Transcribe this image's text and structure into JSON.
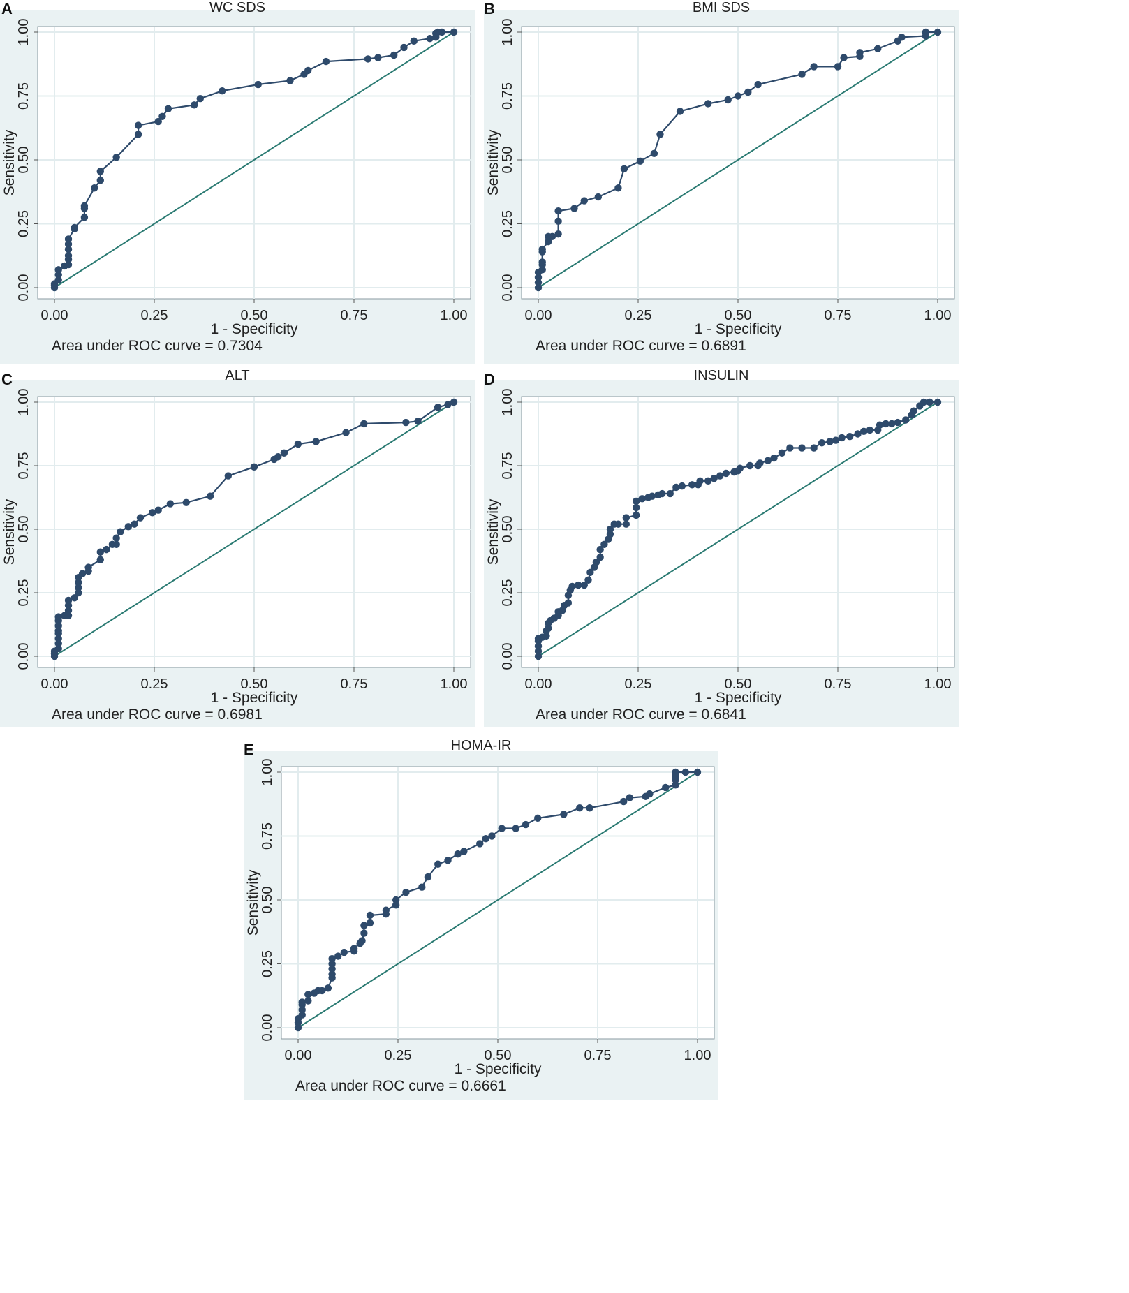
{
  "chart_data": [
    {
      "id": "A",
      "type": "line",
      "title": "WC SDS",
      "xlabel": "1 - Specificity",
      "ylabel": "Sensitivity",
      "xlim": [
        0,
        1
      ],
      "ylim": [
        0,
        1
      ],
      "xticks": [
        "0.00",
        "0.25",
        "0.50",
        "0.75",
        "1.00"
      ],
      "yticks": [
        "0.00",
        "0.25",
        "0.50",
        "0.75",
        "1.00"
      ],
      "grid": true,
      "note": "Area under ROC curve = 0.7304",
      "points": [
        [
          0,
          0
        ],
        [
          0,
          0.01
        ],
        [
          0,
          0.015
        ],
        [
          0.01,
          0.03
        ],
        [
          0.01,
          0.05
        ],
        [
          0.01,
          0.07
        ],
        [
          0.025,
          0.085
        ],
        [
          0.035,
          0.09
        ],
        [
          0.035,
          0.11
        ],
        [
          0.035,
          0.125
        ],
        [
          0.035,
          0.15
        ],
        [
          0.035,
          0.17
        ],
        [
          0.035,
          0.19
        ],
        [
          0.05,
          0.23
        ],
        [
          0.05,
          0.235
        ],
        [
          0.075,
          0.275
        ],
        [
          0.075,
          0.31
        ],
        [
          0.075,
          0.32
        ],
        [
          0.1,
          0.39
        ],
        [
          0.115,
          0.42
        ],
        [
          0.115,
          0.455
        ],
        [
          0.155,
          0.51
        ],
        [
          0.21,
          0.6
        ],
        [
          0.21,
          0.635
        ],
        [
          0.26,
          0.65
        ],
        [
          0.27,
          0.67
        ],
        [
          0.285,
          0.7
        ],
        [
          0.35,
          0.715
        ],
        [
          0.365,
          0.74
        ],
        [
          0.42,
          0.77
        ],
        [
          0.51,
          0.795
        ],
        [
          0.59,
          0.81
        ],
        [
          0.625,
          0.835
        ],
        [
          0.635,
          0.85
        ],
        [
          0.68,
          0.885
        ],
        [
          0.785,
          0.895
        ],
        [
          0.81,
          0.9
        ],
        [
          0.85,
          0.91
        ],
        [
          0.875,
          0.94
        ],
        [
          0.9,
          0.965
        ],
        [
          0.94,
          0.975
        ],
        [
          0.955,
          0.98
        ],
        [
          0.955,
          0.995
        ],
        [
          0.96,
          1
        ],
        [
          0.97,
          1
        ],
        [
          1,
          1
        ]
      ],
      "series_color": "#2e4a6b",
      "reference_color": "#2a7a72"
    },
    {
      "id": "B",
      "type": "line",
      "title": "BMI SDS",
      "xlabel": "1 - Specificity",
      "ylabel": "Sensitivity",
      "xlim": [
        0,
        1
      ],
      "ylim": [
        0,
        1
      ],
      "xticks": [
        "0.00",
        "0.25",
        "0.50",
        "0.75",
        "1.00"
      ],
      "yticks": [
        "0.00",
        "0.25",
        "0.50",
        "0.75",
        "1.00"
      ],
      "grid": true,
      "note": "Area under ROC curve = 0.6891",
      "points": [
        [
          0,
          0
        ],
        [
          0,
          0.02
        ],
        [
          0,
          0.04
        ],
        [
          0,
          0.06
        ],
        [
          0.01,
          0.07
        ],
        [
          0.01,
          0.09
        ],
        [
          0.01,
          0.1
        ],
        [
          0.01,
          0.14
        ],
        [
          0.01,
          0.15
        ],
        [
          0.025,
          0.18
        ],
        [
          0.025,
          0.2
        ],
        [
          0.035,
          0.2
        ],
        [
          0.05,
          0.21
        ],
        [
          0.05,
          0.26
        ],
        [
          0.05,
          0.3
        ],
        [
          0.09,
          0.31
        ],
        [
          0.115,
          0.34
        ],
        [
          0.15,
          0.355
        ],
        [
          0.2,
          0.39
        ],
        [
          0.215,
          0.465
        ],
        [
          0.255,
          0.495
        ],
        [
          0.29,
          0.525
        ],
        [
          0.305,
          0.6
        ],
        [
          0.355,
          0.69
        ],
        [
          0.425,
          0.72
        ],
        [
          0.475,
          0.735
        ],
        [
          0.5,
          0.75
        ],
        [
          0.525,
          0.765
        ],
        [
          0.55,
          0.795
        ],
        [
          0.66,
          0.835
        ],
        [
          0.69,
          0.865
        ],
        [
          0.75,
          0.865
        ],
        [
          0.765,
          0.9
        ],
        [
          0.805,
          0.905
        ],
        [
          0.805,
          0.92
        ],
        [
          0.85,
          0.935
        ],
        [
          0.9,
          0.965
        ],
        [
          0.91,
          0.98
        ],
        [
          0.97,
          0.985
        ],
        [
          0.97,
          1
        ],
        [
          1,
          1
        ]
      ],
      "series_color": "#2e4a6b",
      "reference_color": "#2a7a72"
    },
    {
      "id": "C",
      "type": "line",
      "title": "ALT",
      "xlabel": "1 - Specificity",
      "ylabel": "Sensitivity",
      "xlim": [
        0,
        1
      ],
      "ylim": [
        0,
        1
      ],
      "xticks": [
        "0.00",
        "0.25",
        "0.50",
        "0.75",
        "1.00"
      ],
      "yticks": [
        "0.00",
        "0.25",
        "0.50",
        "0.75",
        "1.00"
      ],
      "grid": true,
      "note": "Area under ROC curve = 0.6981",
      "points": [
        [
          0,
          0
        ],
        [
          0,
          0.01
        ],
        [
          0,
          0.02
        ],
        [
          0.01,
          0.03
        ],
        [
          0.01,
          0.05
        ],
        [
          0.01,
          0.07
        ],
        [
          0.01,
          0.09
        ],
        [
          0.01,
          0.1
        ],
        [
          0.01,
          0.12
        ],
        [
          0.01,
          0.14
        ],
        [
          0.01,
          0.155
        ],
        [
          0.025,
          0.16
        ],
        [
          0.035,
          0.16
        ],
        [
          0.035,
          0.18
        ],
        [
          0.035,
          0.2
        ],
        [
          0.035,
          0.22
        ],
        [
          0.05,
          0.23
        ],
        [
          0.06,
          0.25
        ],
        [
          0.06,
          0.27
        ],
        [
          0.06,
          0.29
        ],
        [
          0.06,
          0.31
        ],
        [
          0.07,
          0.325
        ],
        [
          0.085,
          0.335
        ],
        [
          0.085,
          0.35
        ],
        [
          0.115,
          0.38
        ],
        [
          0.115,
          0.41
        ],
        [
          0.13,
          0.42
        ],
        [
          0.145,
          0.44
        ],
        [
          0.155,
          0.44
        ],
        [
          0.155,
          0.465
        ],
        [
          0.165,
          0.49
        ],
        [
          0.185,
          0.51
        ],
        [
          0.2,
          0.52
        ],
        [
          0.215,
          0.545
        ],
        [
          0.245,
          0.565
        ],
        [
          0.26,
          0.575
        ],
        [
          0.29,
          0.6
        ],
        [
          0.33,
          0.605
        ],
        [
          0.39,
          0.63
        ],
        [
          0.435,
          0.71
        ],
        [
          0.5,
          0.745
        ],
        [
          0.55,
          0.775
        ],
        [
          0.56,
          0.785
        ],
        [
          0.575,
          0.8
        ],
        [
          0.61,
          0.835
        ],
        [
          0.655,
          0.845
        ],
        [
          0.73,
          0.88
        ],
        [
          0.775,
          0.915
        ],
        [
          0.88,
          0.92
        ],
        [
          0.91,
          0.925
        ],
        [
          0.96,
          0.98
        ],
        [
          0.985,
          0.99
        ],
        [
          1,
          1
        ]
      ],
      "series_color": "#2e4a6b",
      "reference_color": "#2a7a72"
    },
    {
      "id": "D",
      "type": "line",
      "title": "INSULIN",
      "xlabel": "1 - Specificity",
      "ylabel": "Sensitivity",
      "xlim": [
        0,
        1
      ],
      "ylim": [
        0,
        1
      ],
      "xticks": [
        "0.00",
        "0.25",
        "0.50",
        "0.75",
        "1.00"
      ],
      "yticks": [
        "0.00",
        "0.25",
        "0.50",
        "0.75",
        "1.00"
      ],
      "grid": true,
      "note": "Area under ROC curve = 0.6841",
      "points": [
        [
          0,
          0
        ],
        [
          0,
          0.02
        ],
        [
          0,
          0.04
        ],
        [
          0,
          0.06
        ],
        [
          0,
          0.07
        ],
        [
          0.01,
          0.075
        ],
        [
          0.02,
          0.08
        ],
        [
          0.02,
          0.1
        ],
        [
          0.025,
          0.11
        ],
        [
          0.025,
          0.13
        ],
        [
          0.03,
          0.14
        ],
        [
          0.04,
          0.15
        ],
        [
          0.05,
          0.16
        ],
        [
          0.05,
          0.175
        ],
        [
          0.06,
          0.18
        ],
        [
          0.065,
          0.2
        ],
        [
          0.075,
          0.21
        ],
        [
          0.075,
          0.24
        ],
        [
          0.08,
          0.26
        ],
        [
          0.085,
          0.275
        ],
        [
          0.1,
          0.28
        ],
        [
          0.115,
          0.28
        ],
        [
          0.125,
          0.3
        ],
        [
          0.13,
          0.33
        ],
        [
          0.14,
          0.35
        ],
        [
          0.145,
          0.37
        ],
        [
          0.155,
          0.39
        ],
        [
          0.155,
          0.42
        ],
        [
          0.165,
          0.44
        ],
        [
          0.175,
          0.46
        ],
        [
          0.18,
          0.48
        ],
        [
          0.18,
          0.5
        ],
        [
          0.19,
          0.52
        ],
        [
          0.2,
          0.52
        ],
        [
          0.22,
          0.52
        ],
        [
          0.22,
          0.545
        ],
        [
          0.245,
          0.555
        ],
        [
          0.245,
          0.585
        ],
        [
          0.245,
          0.61
        ],
        [
          0.26,
          0.62
        ],
        [
          0.275,
          0.625
        ],
        [
          0.285,
          0.63
        ],
        [
          0.3,
          0.635
        ],
        [
          0.31,
          0.64
        ],
        [
          0.33,
          0.64
        ],
        [
          0.345,
          0.665
        ],
        [
          0.36,
          0.67
        ],
        [
          0.385,
          0.675
        ],
        [
          0.4,
          0.675
        ],
        [
          0.405,
          0.69
        ],
        [
          0.425,
          0.69
        ],
        [
          0.44,
          0.7
        ],
        [
          0.455,
          0.71
        ],
        [
          0.47,
          0.72
        ],
        [
          0.49,
          0.725
        ],
        [
          0.5,
          0.73
        ],
        [
          0.505,
          0.74
        ],
        [
          0.53,
          0.75
        ],
        [
          0.55,
          0.75
        ],
        [
          0.555,
          0.76
        ],
        [
          0.575,
          0.77
        ],
        [
          0.59,
          0.78
        ],
        [
          0.61,
          0.8
        ],
        [
          0.63,
          0.82
        ],
        [
          0.66,
          0.82
        ],
        [
          0.69,
          0.82
        ],
        [
          0.71,
          0.84
        ],
        [
          0.73,
          0.845
        ],
        [
          0.745,
          0.85
        ],
        [
          0.76,
          0.86
        ],
        [
          0.78,
          0.865
        ],
        [
          0.8,
          0.875
        ],
        [
          0.815,
          0.885
        ],
        [
          0.83,
          0.89
        ],
        [
          0.85,
          0.89
        ],
        [
          0.855,
          0.91
        ],
        [
          0.87,
          0.915
        ],
        [
          0.885,
          0.915
        ],
        [
          0.9,
          0.92
        ],
        [
          0.92,
          0.93
        ],
        [
          0.935,
          0.95
        ],
        [
          0.94,
          0.965
        ],
        [
          0.955,
          0.985
        ],
        [
          0.965,
          1
        ],
        [
          0.98,
          1
        ],
        [
          1,
          1
        ]
      ],
      "series_color": "#2e4a6b",
      "reference_color": "#2a7a72"
    },
    {
      "id": "E",
      "type": "line",
      "title": "HOMA-IR",
      "xlabel": "1 - Specificity",
      "ylabel": "Sensitivity",
      "xlim": [
        0,
        1
      ],
      "ylim": [
        0,
        1
      ],
      "xticks": [
        "0.00",
        "0.25",
        "0.50",
        "0.75",
        "1.00"
      ],
      "yticks": [
        "0.00",
        "0.25",
        "0.50",
        "0.75",
        "1.00"
      ],
      "grid": true,
      "note": "Area under ROC curve = 0.6661",
      "points": [
        [
          0,
          0
        ],
        [
          0,
          0.02
        ],
        [
          0,
          0.035
        ],
        [
          0.01,
          0.05
        ],
        [
          0.01,
          0.07
        ],
        [
          0.01,
          0.09
        ],
        [
          0.01,
          0.1
        ],
        [
          0.025,
          0.105
        ],
        [
          0.025,
          0.13
        ],
        [
          0.04,
          0.135
        ],
        [
          0.05,
          0.145
        ],
        [
          0.06,
          0.145
        ],
        [
          0.075,
          0.155
        ],
        [
          0.085,
          0.195
        ],
        [
          0.085,
          0.21
        ],
        [
          0.085,
          0.23
        ],
        [
          0.085,
          0.25
        ],
        [
          0.085,
          0.27
        ],
        [
          0.1,
          0.28
        ],
        [
          0.115,
          0.295
        ],
        [
          0.14,
          0.3
        ],
        [
          0.14,
          0.31
        ],
        [
          0.155,
          0.33
        ],
        [
          0.16,
          0.34
        ],
        [
          0.165,
          0.37
        ],
        [
          0.165,
          0.4
        ],
        [
          0.18,
          0.41
        ],
        [
          0.18,
          0.44
        ],
        [
          0.22,
          0.445
        ],
        [
          0.22,
          0.46
        ],
        [
          0.245,
          0.48
        ],
        [
          0.245,
          0.5
        ],
        [
          0.27,
          0.53
        ],
        [
          0.31,
          0.55
        ],
        [
          0.325,
          0.59
        ],
        [
          0.35,
          0.64
        ],
        [
          0.375,
          0.655
        ],
        [
          0.4,
          0.68
        ],
        [
          0.415,
          0.69
        ],
        [
          0.455,
          0.72
        ],
        [
          0.47,
          0.74
        ],
        [
          0.485,
          0.75
        ],
        [
          0.51,
          0.78
        ],
        [
          0.545,
          0.78
        ],
        [
          0.57,
          0.795
        ],
        [
          0.6,
          0.82
        ],
        [
          0.665,
          0.835
        ],
        [
          0.705,
          0.86
        ],
        [
          0.73,
          0.86
        ],
        [
          0.815,
          0.885
        ],
        [
          0.83,
          0.9
        ],
        [
          0.87,
          0.905
        ],
        [
          0.88,
          0.915
        ],
        [
          0.92,
          0.94
        ],
        [
          0.945,
          0.95
        ],
        [
          0.945,
          0.97
        ],
        [
          0.945,
          0.985
        ],
        [
          0.945,
          1
        ],
        [
          0.97,
          1
        ],
        [
          1,
          1
        ]
      ],
      "series_color": "#2e4a6b",
      "reference_color": "#2a7a72"
    }
  ]
}
